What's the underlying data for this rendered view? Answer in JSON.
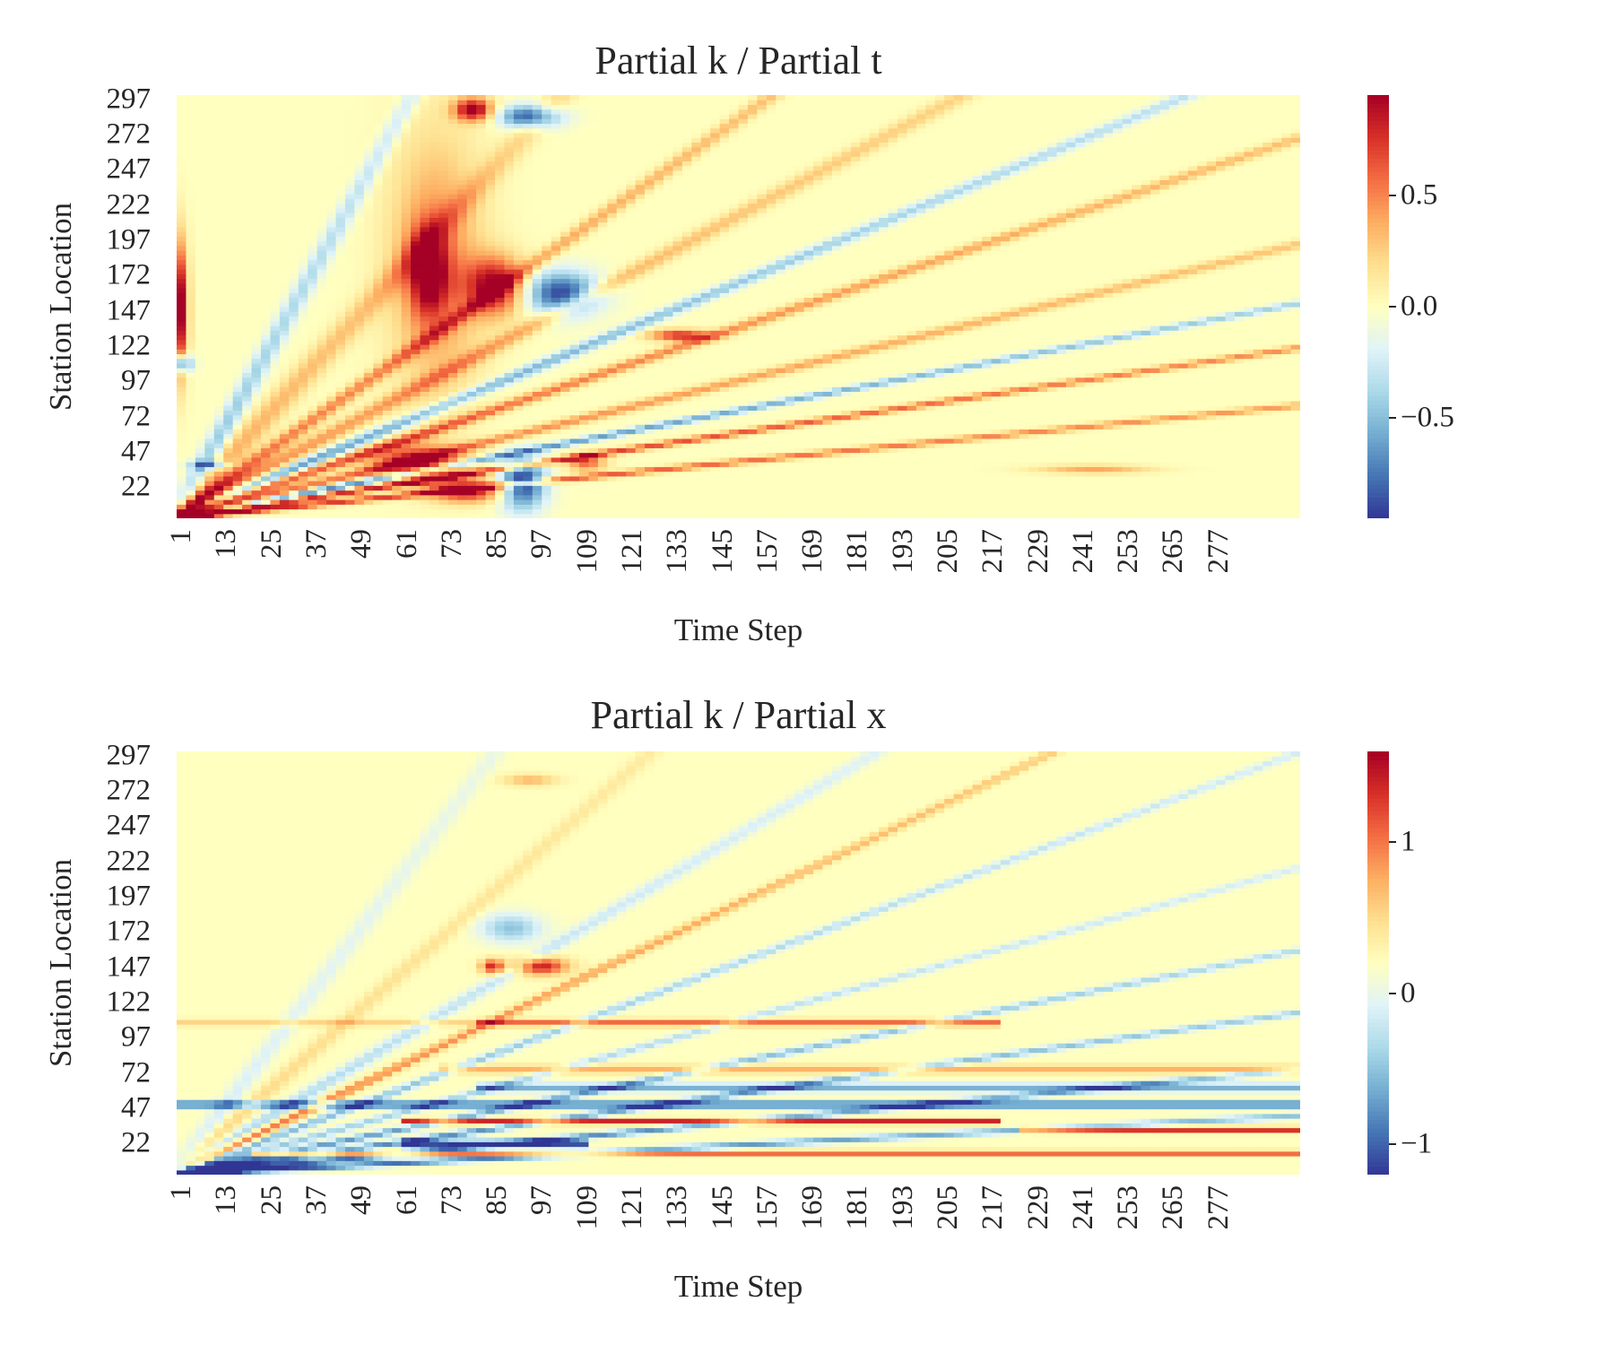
{
  "chart_data": [
    {
      "type": "heatmap",
      "title": "Partial k / Partial t",
      "xlabel": "Time Step",
      "ylabel": "Station Location",
      "xticks": [
        "1",
        "13",
        "25",
        "37",
        "49",
        "61",
        "73",
        "85",
        "97",
        "109",
        "121",
        "133",
        "145",
        "157",
        "169",
        "181",
        "193",
        "205",
        "217",
        "229",
        "241",
        "253",
        "265",
        "277"
      ],
      "yticks": [
        "22",
        "47",
        "72",
        "97",
        "122",
        "147",
        "172",
        "197",
        "222",
        "247",
        "272",
        "297"
      ],
      "x_range": [
        1,
        300
      ],
      "y_range": [
        0,
        300
      ],
      "colorbar": {
        "ticks": [
          "0.5",
          "0.0",
          "−0.5"
        ],
        "tick_values": [
          0.5,
          0.0,
          -0.5
        ],
        "range": [
          -0.95,
          0.95
        ],
        "colormap": "RdYlBu_r"
      },
      "features": [
        {
          "kind": "blob",
          "x": 2,
          "y": 150,
          "sx": 2,
          "sy": 45,
          "v": 1.0
        },
        {
          "kind": "blob",
          "x": 2,
          "y": 110,
          "sx": 3,
          "sy": 6,
          "v": -0.9
        },
        {
          "kind": "blob",
          "x": 70,
          "y": 180,
          "sx": 12,
          "sy": 90,
          "v": 0.5
        },
        {
          "kind": "blob",
          "x": 68,
          "y": 175,
          "sx": 5,
          "sy": 30,
          "v": 0.8
        },
        {
          "kind": "blob",
          "x": 80,
          "y": 290,
          "sx": 5,
          "sy": 8,
          "v": 1.0
        },
        {
          "kind": "blob",
          "x": 95,
          "y": 285,
          "sx": 8,
          "sy": 8,
          "v": -0.9
        },
        {
          "kind": "blob",
          "x": 86,
          "y": 165,
          "sx": 8,
          "sy": 20,
          "v": 0.95
        },
        {
          "kind": "blob",
          "x": 103,
          "y": 160,
          "sx": 10,
          "sy": 15,
          "v": -0.9
        },
        {
          "kind": "blob",
          "x": 65,
          "y": 40,
          "sx": 12,
          "sy": 12,
          "v": 0.9
        },
        {
          "kind": "blob",
          "x": 78,
          "y": 20,
          "sx": 10,
          "sy": 8,
          "v": 0.9
        },
        {
          "kind": "blob",
          "x": 93,
          "y": 25,
          "sx": 6,
          "sy": 18,
          "v": -1.0
        },
        {
          "kind": "blob",
          "x": 110,
          "y": 40,
          "sx": 5,
          "sy": 6,
          "v": 0.6
        },
        {
          "kind": "blob",
          "x": 10,
          "y": 38,
          "sx": 5,
          "sy": 3,
          "v": -0.7
        },
        {
          "kind": "blob",
          "x": 135,
          "y": 130,
          "sx": 8,
          "sy": 4,
          "v": 0.8
        },
        {
          "kind": "blob",
          "x": 245,
          "y": 35,
          "sx": 15,
          "sy": 3,
          "v": 0.4
        },
        {
          "kind": "ray",
          "angle": 15,
          "v": 0.8,
          "w": 1.5
        },
        {
          "kind": "ray",
          "angle": 22,
          "v": 0.9,
          "w": 1.5
        },
        {
          "kind": "ray",
          "angle": 27,
          "v": -0.8,
          "w": 1.5
        },
        {
          "kind": "ray",
          "angle": 33,
          "v": 0.6,
          "w": 2.0
        },
        {
          "kind": "ray",
          "angle": 42,
          "v": 0.7,
          "w": 2.0
        },
        {
          "kind": "ray",
          "angle": 48,
          "v": -0.7,
          "w": 2.0
        },
        {
          "kind": "ray",
          "angle": 55,
          "v": 0.5,
          "w": 2.5
        },
        {
          "kind": "ray",
          "angle": 62,
          "v": 0.6,
          "w": 2.0
        },
        {
          "kind": "ray",
          "angle": 71,
          "v": 0.4,
          "w": 3.0
        },
        {
          "kind": "ray",
          "angle": 78,
          "v": -0.5,
          "w": 2.0
        }
      ]
    },
    {
      "type": "heatmap",
      "title": "Partial k / Partial x",
      "xlabel": "Time Step",
      "ylabel": "Station Location",
      "xticks": [
        "1",
        "13",
        "25",
        "37",
        "49",
        "61",
        "73",
        "85",
        "97",
        "109",
        "121",
        "133",
        "145",
        "157",
        "169",
        "181",
        "193",
        "205",
        "217",
        "229",
        "241",
        "253",
        "265",
        "277"
      ],
      "yticks": [
        "22",
        "47",
        "72",
        "97",
        "122",
        "147",
        "172",
        "197",
        "222",
        "247",
        "272",
        "297"
      ],
      "x_range": [
        1,
        300
      ],
      "y_range": [
        0,
        300
      ],
      "colorbar": {
        "ticks": [
          "1",
          "0",
          "−1"
        ],
        "tick_values": [
          1,
          0,
          -1
        ],
        "range": [
          -1.2,
          1.6
        ],
        "colormap": "RdYlBu_r"
      },
      "features": [
        {
          "kind": "band",
          "y": 16,
          "w": 1.5,
          "x0": 20,
          "x1": 300,
          "v": 1.5
        },
        {
          "kind": "band",
          "y": 22,
          "w": 3.0,
          "x0": 60,
          "x1": 110,
          "v": -1.1
        },
        {
          "kind": "band",
          "y": 32,
          "w": 2.0,
          "x0": 225,
          "x1": 300,
          "v": 1.3
        },
        {
          "kind": "band",
          "y": 38,
          "w": 2.0,
          "x0": 60,
          "x1": 220,
          "v": 1.4
        },
        {
          "kind": "band",
          "y": 50,
          "w": 2.5,
          "x0": 0,
          "x1": 300,
          "v": -1.1
        },
        {
          "kind": "band",
          "y": 62,
          "w": 3.0,
          "x0": 80,
          "x1": 300,
          "v": -0.7
        },
        {
          "kind": "band",
          "y": 75,
          "w": 3.0,
          "x0": 70,
          "x1": 300,
          "v": 0.6
        },
        {
          "kind": "band",
          "y": 108,
          "w": 2.5,
          "x0": 80,
          "x1": 220,
          "v": 1.0
        },
        {
          "kind": "band",
          "y": 108,
          "w": 2.5,
          "x0": 0,
          "x1": 80,
          "v": 0.4
        },
        {
          "kind": "blob",
          "x": 98,
          "y": 148,
          "sx": 7,
          "sy": 6,
          "v": 1.4
        },
        {
          "kind": "blob",
          "x": 85,
          "y": 148,
          "sx": 3,
          "sy": 5,
          "v": 1.3
        },
        {
          "kind": "blob",
          "x": 95,
          "y": 280,
          "sx": 7,
          "sy": 4,
          "v": 0.6
        },
        {
          "kind": "blob",
          "x": 90,
          "y": 175,
          "sx": 8,
          "sy": 10,
          "v": -0.6
        },
        {
          "kind": "ray",
          "angle": 8,
          "v": -1.1,
          "w": 1.5
        },
        {
          "kind": "ray",
          "angle": 14,
          "v": -1.1,
          "w": 1.5
        },
        {
          "kind": "ray",
          "angle": 21,
          "v": -1.0,
          "w": 1.5
        },
        {
          "kind": "ray",
          "angle": 28,
          "v": -0.9,
          "w": 1.5
        },
        {
          "kind": "ray",
          "angle": 36,
          "v": -0.6,
          "w": 1.5
        },
        {
          "kind": "ray",
          "angle": 45,
          "v": -0.7,
          "w": 1.5
        },
        {
          "kind": "ray",
          "angle": 52,
          "v": 1.0,
          "w": 1.5
        },
        {
          "kind": "ray",
          "angle": 58,
          "v": -0.5,
          "w": 2.0
        },
        {
          "kind": "ray",
          "angle": 67,
          "v": 0.4,
          "w": 2.0
        },
        {
          "kind": "ray",
          "angle": 74,
          "v": -0.3,
          "w": 2.0
        }
      ]
    }
  ]
}
